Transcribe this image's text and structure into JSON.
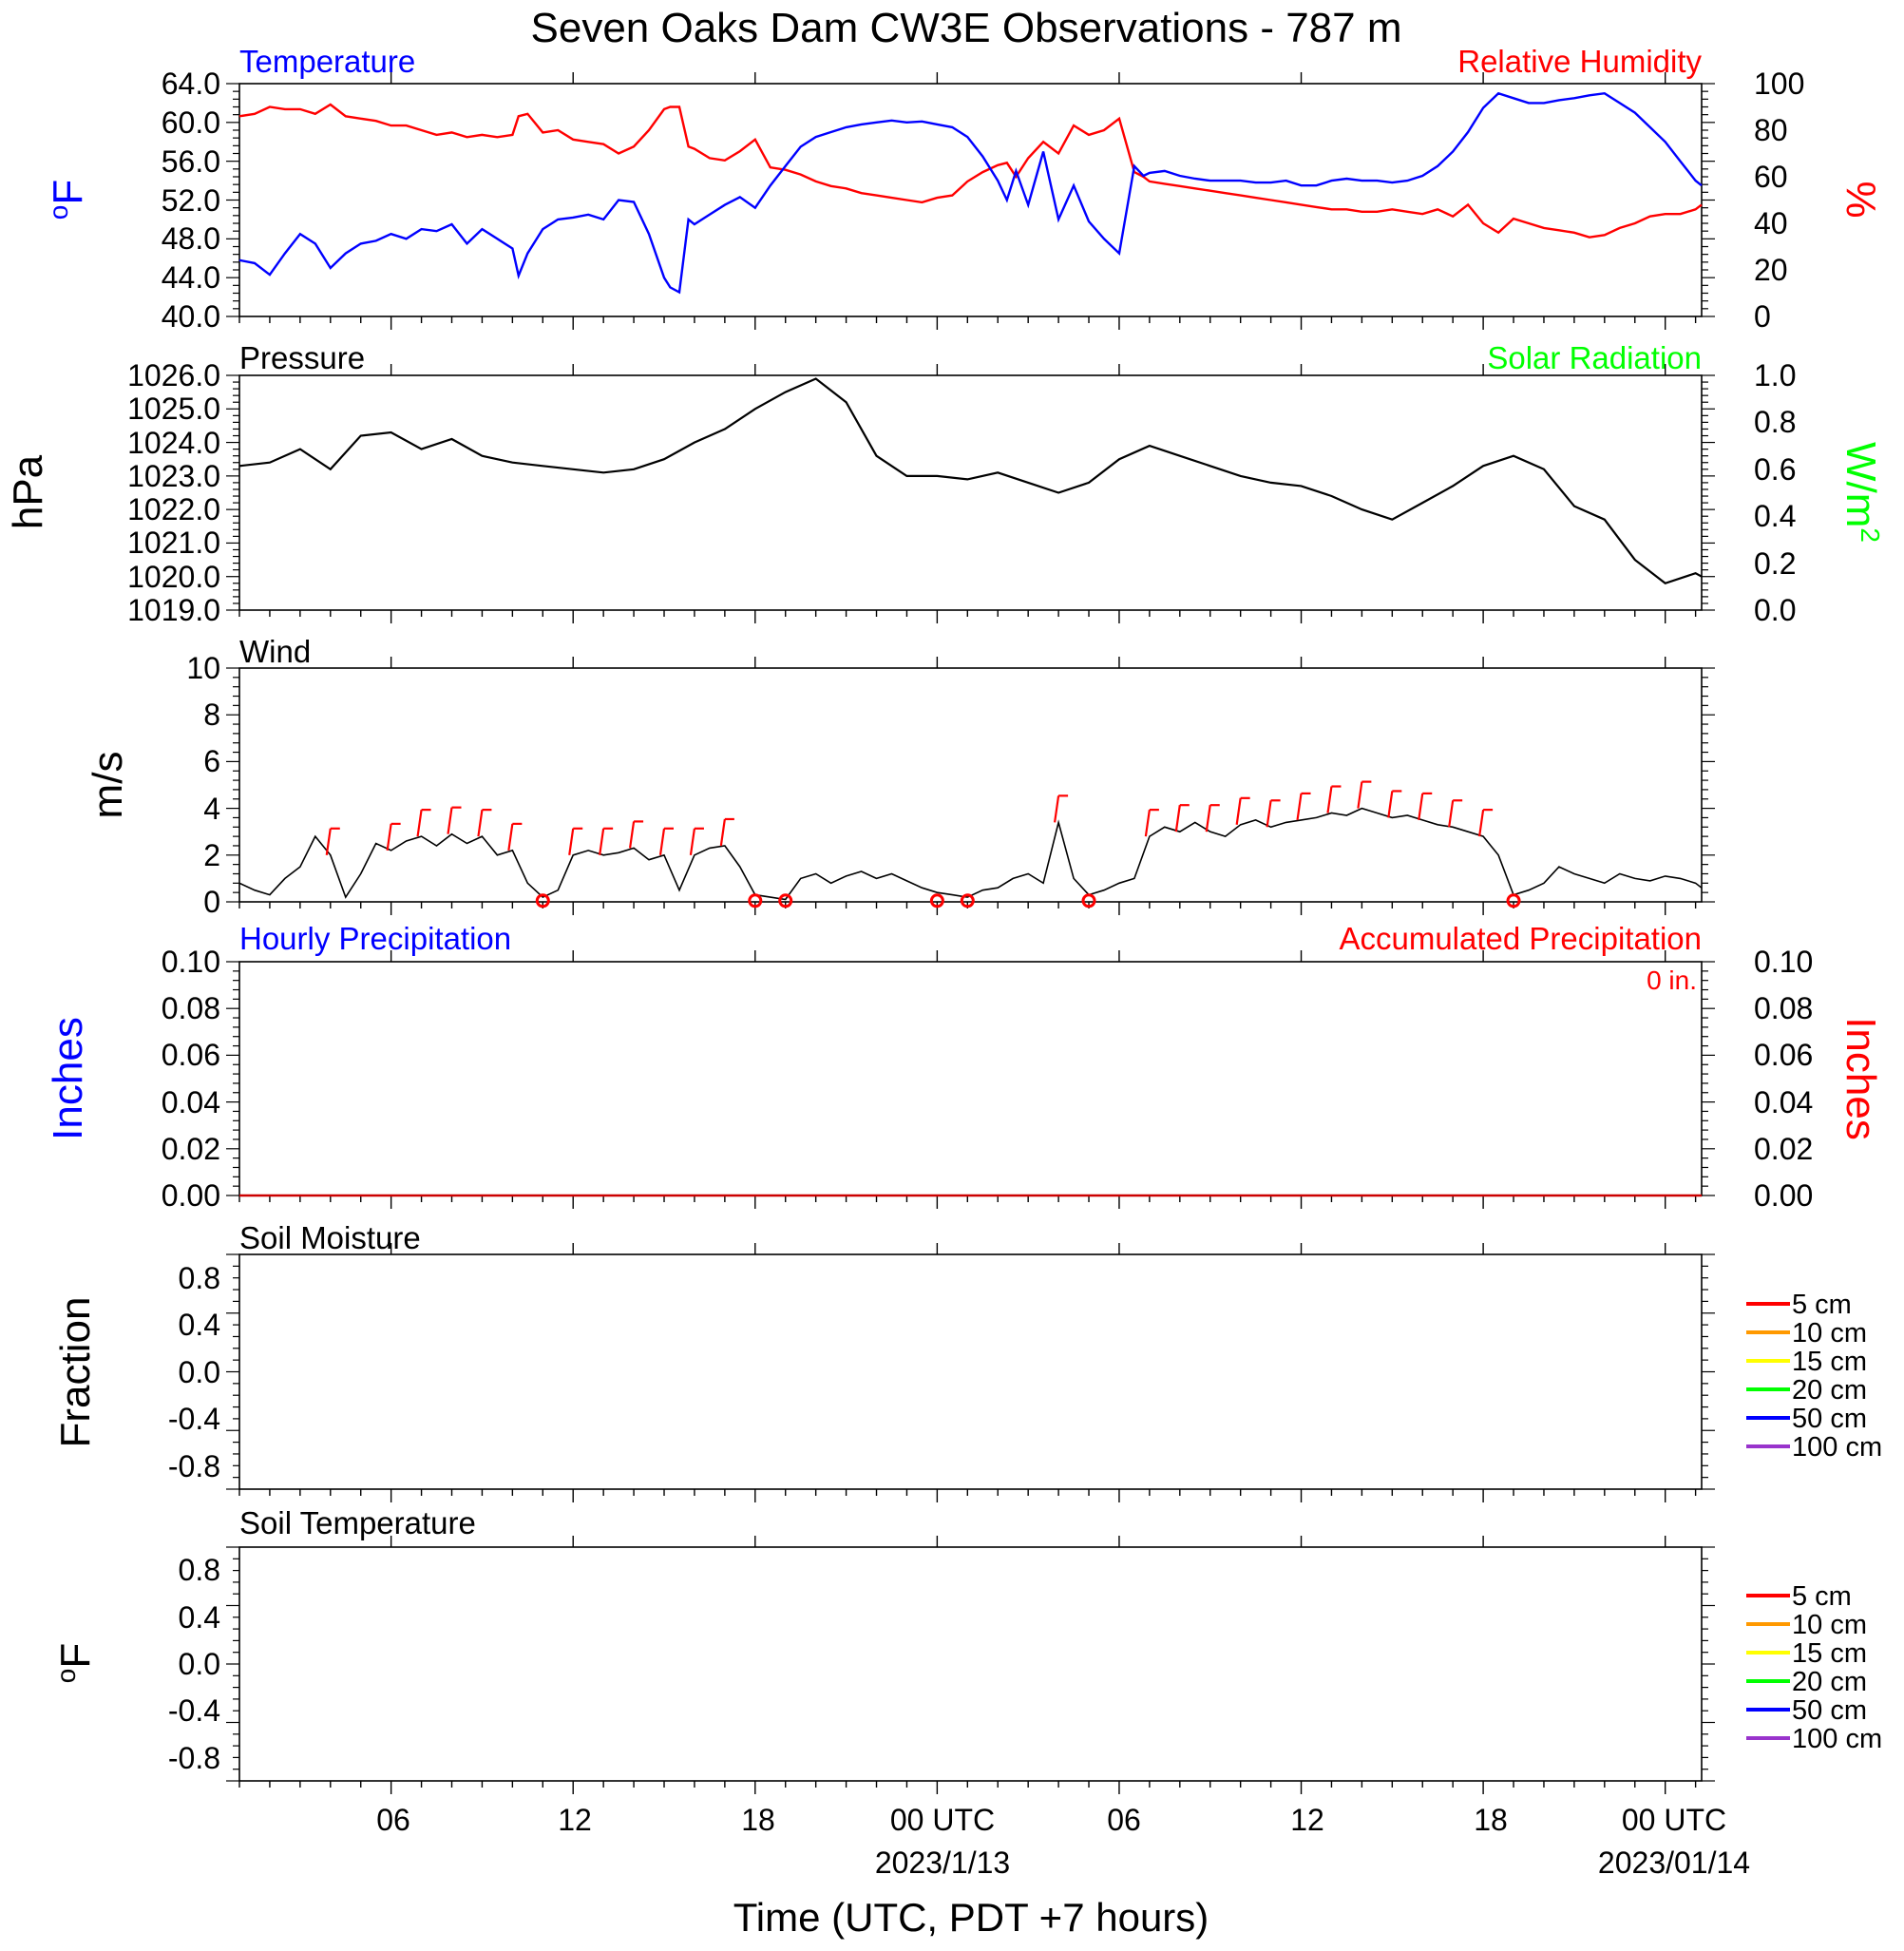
{
  "title": "Seven Oaks Dam CW3E Observations - 787 m",
  "x_axis": {
    "label": "Time (UTC, PDT +7 hours)",
    "tick_labels": [
      "06",
      "12",
      "18",
      "00 UTC",
      "06",
      "12",
      "18",
      "00 UTC"
    ],
    "date_labels": [
      "2023/1/13",
      "2023/01/14"
    ]
  },
  "colors": {
    "temperature": "#0000ff",
    "humidity": "#ff0000",
    "pressure": "#000000",
    "solar": "#00ff00",
    "wind": "#000000",
    "barb": "#ff0000",
    "hourly_precip": "#0000ff",
    "accum_precip": "#ff0000",
    "soil": [
      "#ff0000",
      "#ff9900",
      "#ffff00",
      "#00ff00",
      "#0000ff",
      "#9933cc"
    ]
  },
  "panels": {
    "temp_rh": {
      "left_title": "Temperature",
      "right_title": "Relative Humidity",
      "left_unit": "oF",
      "right_unit": "%",
      "left_ticks": [
        "64.0",
        "60.0",
        "56.0",
        "52.0",
        "48.0",
        "44.0",
        "40.0"
      ],
      "right_ticks": [
        "100",
        "80",
        "60",
        "40",
        "20",
        "0"
      ]
    },
    "pressure": {
      "left_title": "Pressure",
      "right_title": "Solar Radiation",
      "left_unit": "hPa",
      "right_unit": "W/m2",
      "left_ticks": [
        "1026.0",
        "1025.0",
        "1024.0",
        "1023.0",
        "1022.0",
        "1021.0",
        "1020.0",
        "1019.0"
      ],
      "right_ticks": [
        "1.0",
        "0.8",
        "0.6",
        "0.4",
        "0.2",
        "0.0"
      ]
    },
    "wind": {
      "left_title": "Wind",
      "left_unit": "m/s",
      "left_ticks": [
        "10",
        "8",
        "6",
        "4",
        "2",
        "0"
      ]
    },
    "precip": {
      "left_title": "Hourly Precipitation",
      "right_title": "Accumulated Precipitation",
      "accum_label": "0 in.",
      "left_unit": "Inches",
      "right_unit": "Inches",
      "left_ticks": [
        "0.10",
        "0.08",
        "0.06",
        "0.04",
        "0.02",
        "0.00"
      ],
      "right_ticks": [
        "0.10",
        "0.08",
        "0.06",
        "0.04",
        "0.02",
        "0.00"
      ]
    },
    "soil_moisture": {
      "left_title": "Soil Moisture",
      "left_unit": "Fraction",
      "left_ticks": [
        "0.8",
        "0.4",
        "0.0",
        "-0.4",
        "-0.8"
      ],
      "legend": [
        "5 cm",
        "10 cm",
        "15 cm",
        "20 cm",
        "50 cm",
        "100 cm"
      ]
    },
    "soil_temp": {
      "left_title": "Soil Temperature",
      "left_unit": "oF",
      "left_ticks": [
        "0.8",
        "0.4",
        "0.0",
        "-0.4",
        "-0.8"
      ],
      "legend": [
        "5 cm",
        "10 cm",
        "15 cm",
        "20 cm",
        "50 cm",
        "100 cm"
      ]
    }
  },
  "chart_data": [
    {
      "type": "line",
      "panel": "Temperature / Relative Humidity",
      "x_units": "hours since 2023-01-12 01 UTC",
      "series": [
        {
          "name": "Temperature",
          "axis": "left",
          "units": "oF",
          "x": [
            0,
            0.5,
            1,
            1.5,
            2,
            2.5,
            3,
            3.5,
            4,
            4.5,
            5,
            5.5,
            6,
            6.5,
            7,
            7.5,
            8,
            8.5,
            9,
            9.2,
            9.5,
            10,
            10.5,
            11,
            11.5,
            12,
            12.5,
            13,
            13.5,
            14,
            14.2,
            14.5,
            14.8,
            15,
            15.5,
            16,
            16.5,
            17,
            17.5,
            18,
            18.5,
            19,
            19.5,
            20,
            20.5,
            21,
            21.5,
            22,
            22.5,
            23,
            23.5,
            24,
            24.5,
            25,
            25.3,
            25.6,
            26,
            26.5,
            27,
            27.5,
            28,
            28.5,
            29,
            29.5,
            29.8,
            30,
            30.5,
            31,
            31.5,
            32,
            32.5,
            33,
            33.5,
            34,
            34.5,
            35,
            35.5,
            36,
            36.5,
            37,
            37.5,
            38,
            38.5,
            39,
            39.5,
            40,
            40.5,
            41,
            41.5,
            42,
            42.5,
            43,
            43.5,
            44,
            44.5,
            45,
            45.5,
            46,
            46.5,
            47,
            47.5,
            48,
            48.2
          ],
          "values": [
            45.8,
            45.5,
            44.3,
            46.5,
            48.5,
            47.5,
            45.0,
            46.5,
            47.5,
            47.8,
            48.5,
            48.0,
            49.0,
            48.8,
            49.5,
            47.5,
            49.0,
            48.0,
            47.0,
            44.2,
            46.5,
            49.0,
            50.0,
            50.2,
            50.5,
            50.0,
            52.0,
            51.8,
            48.5,
            44.0,
            43.0,
            42.5,
            50.0,
            49.5,
            50.5,
            51.5,
            52.3,
            51.2,
            53.5,
            55.5,
            57.5,
            58.5,
            59.0,
            59.5,
            59.8,
            60.0,
            60.2,
            60.0,
            60.1,
            59.8,
            59.5,
            58.5,
            56.5,
            54.0,
            52.0,
            55.0,
            51.5,
            57.0,
            50.0,
            53.5,
            49.8,
            48.0,
            46.5,
            55.5,
            54.5,
            54.8,
            55.0,
            54.5,
            54.2,
            54.0,
            54.0,
            54.0,
            53.8,
            53.8,
            54.0,
            53.5,
            53.5,
            54.0,
            54.2,
            54.0,
            54.0,
            53.8,
            54.0,
            54.5,
            55.5,
            57.0,
            59.0,
            61.5,
            63.0,
            62.5,
            62.0,
            62.0,
            62.3,
            62.5,
            62.8,
            63.0,
            62.0,
            61.0,
            59.5,
            58.0,
            56.0,
            54.0,
            53.5
          ]
        },
        {
          "name": "Relative Humidity",
          "axis": "right",
          "units": "%",
          "x": [
            0,
            0.5,
            1,
            1.5,
            2,
            2.5,
            3,
            3.5,
            4,
            4.5,
            5,
            5.5,
            6,
            6.5,
            7,
            7.5,
            8,
            8.5,
            9,
            9.2,
            9.5,
            10,
            10.5,
            11,
            11.5,
            12,
            12.5,
            13,
            13.5,
            14,
            14.2,
            14.5,
            14.8,
            15,
            15.5,
            16,
            16.5,
            17,
            17.5,
            18,
            18.5,
            19,
            19.5,
            20,
            20.5,
            21,
            21.5,
            22,
            22.5,
            23,
            23.5,
            24,
            24.5,
            25,
            25.3,
            25.6,
            26,
            26.5,
            27,
            27.5,
            28,
            28.5,
            29,
            29.5,
            29.8,
            30,
            30.5,
            31,
            31.5,
            32,
            32.5,
            33,
            33.5,
            34,
            34.5,
            35,
            35.5,
            36,
            36.5,
            37,
            37.5,
            38,
            38.5,
            39,
            39.5,
            40,
            40.5,
            41,
            41.5,
            42,
            42.5,
            43,
            43.5,
            44,
            44.5,
            45,
            45.5,
            46,
            46.5,
            47,
            47.5,
            48,
            48.2
          ],
          "values": [
            86,
            87,
            90,
            89,
            89,
            87,
            91,
            86,
            85,
            84,
            82,
            82,
            80,
            78,
            79,
            77,
            78,
            77,
            78,
            86,
            87,
            79,
            80,
            76,
            75,
            74,
            70,
            73,
            80,
            89,
            90,
            90,
            73,
            72,
            68,
            67,
            71,
            76,
            64,
            63,
            61,
            58,
            56,
            55,
            53,
            52,
            51,
            50,
            49,
            51,
            52,
            58,
            62,
            65,
            66,
            60,
            68,
            75,
            70,
            82,
            78,
            80,
            85,
            62,
            60,
            58,
            57,
            56,
            55,
            54,
            53,
            52,
            51,
            50,
            49,
            48,
            47,
            46,
            46,
            45,
            45,
            46,
            45,
            44,
            46,
            43,
            48,
            40,
            36,
            42,
            40,
            38,
            37,
            36,
            34,
            35,
            38,
            40,
            43,
            44,
            44,
            46,
            48
          ]
        }
      ],
      "ylim_left": [
        40,
        64
      ],
      "ylim_right": [
        0,
        100
      ]
    },
    {
      "type": "line",
      "panel": "Pressure / Solar Radiation",
      "x_units": "hours since 2023-01-12 01 UTC",
      "series": [
        {
          "name": "Pressure",
          "axis": "left",
          "units": "hPa",
          "x": [
            0,
            1,
            2,
            3,
            4,
            5,
            6,
            7,
            8,
            9,
            10,
            11,
            12,
            13,
            14,
            15,
            16,
            17,
            18,
            19,
            20,
            21,
            22,
            23,
            24,
            25,
            26,
            27,
            28,
            29,
            30,
            31,
            32,
            33,
            34,
            35,
            36,
            37,
            38,
            39,
            40,
            41,
            42,
            43,
            44,
            45,
            46,
            47,
            48,
            48.2
          ],
          "values": [
            1023.3,
            1023.4,
            1023.8,
            1023.2,
            1024.2,
            1024.3,
            1023.8,
            1024.1,
            1023.6,
            1023.4,
            1023.3,
            1023.2,
            1023.1,
            1023.2,
            1023.5,
            1024.0,
            1024.4,
            1025.0,
            1025.5,
            1025.9,
            1025.2,
            1023.6,
            1023.0,
            1023.0,
            1022.9,
            1023.1,
            1022.8,
            1022.5,
            1022.8,
            1023.5,
            1023.9,
            1023.6,
            1023.3,
            1023.0,
            1022.8,
            1022.7,
            1022.4,
            1022.0,
            1021.7,
            1022.2,
            1022.7,
            1023.3,
            1023.6,
            1023.2,
            1022.1,
            1021.7,
            1020.5,
            1019.8,
            1020.1,
            1020.0
          ]
        }
      ],
      "ylim_left": [
        1019,
        1026
      ],
      "ylim_right": [
        0,
        1
      ]
    },
    {
      "type": "line",
      "panel": "Wind",
      "x_units": "hours since 2023-01-12 01 UTC",
      "series": [
        {
          "name": "Wind speed",
          "units": "m/s",
          "x": [
            0,
            0.5,
            1,
            1.5,
            2,
            2.5,
            3,
            3.5,
            4,
            4.5,
            5,
            5.5,
            6,
            6.5,
            7,
            7.5,
            8,
            8.5,
            9,
            9.5,
            10,
            10.5,
            11,
            11.5,
            12,
            12.5,
            13,
            13.5,
            14,
            14.5,
            15,
            15.5,
            16,
            16.5,
            17,
            17.5,
            18,
            18.5,
            19,
            19.5,
            20,
            20.5,
            21,
            21.5,
            22,
            22.5,
            23,
            23.5,
            24,
            24.5,
            25,
            25.5,
            26,
            26.5,
            27,
            27.5,
            28,
            28.5,
            29,
            29.5,
            30,
            30.5,
            31,
            31.5,
            32,
            32.5,
            33,
            33.5,
            34,
            34.5,
            35,
            35.5,
            36,
            36.5,
            37,
            37.5,
            38,
            38.5,
            39,
            39.5,
            40,
            40.5,
            41,
            41.5,
            42,
            42.5,
            43,
            43.5,
            44,
            44.5,
            45,
            45.5,
            46,
            46.5,
            47,
            47.5,
            48,
            48.2
          ],
          "values": [
            0.8,
            0.5,
            0.3,
            1.0,
            1.5,
            2.8,
            2.0,
            0.2,
            1.2,
            2.5,
            2.2,
            2.6,
            2.8,
            2.4,
            2.9,
            2.5,
            2.8,
            2.0,
            2.2,
            0.8,
            0.2,
            0.5,
            2.0,
            2.2,
            2.0,
            2.1,
            2.3,
            1.8,
            2.0,
            0.5,
            2.0,
            2.3,
            2.4,
            1.5,
            0.3,
            0.2,
            0.1,
            1.0,
            1.2,
            0.8,
            1.1,
            1.3,
            1.0,
            1.2,
            0.9,
            0.6,
            0.4,
            0.3,
            0.2,
            0.5,
            0.6,
            1.0,
            1.2,
            0.8,
            3.4,
            1.0,
            0.3,
            0.5,
            0.8,
            1.0,
            2.8,
            3.2,
            3.0,
            3.4,
            3.0,
            2.8,
            3.3,
            3.5,
            3.2,
            3.4,
            3.5,
            3.6,
            3.8,
            3.7,
            4.0,
            3.8,
            3.6,
            3.7,
            3.5,
            3.3,
            3.2,
            3.0,
            2.8,
            2.0,
            0.3,
            0.5,
            0.8,
            1.5,
            1.2,
            1.0,
            0.8,
            1.2,
            1.0,
            0.9,
            1.1,
            1.0,
            0.8,
            0.6
          ]
        }
      ],
      "ylim": [
        0,
        10
      ]
    },
    {
      "type": "line",
      "panel": "Hourly / Accumulated Precipitation",
      "series": [
        {
          "name": "Hourly Precipitation",
          "axis": "left",
          "units": "Inches",
          "x": [
            0,
            48.2
          ],
          "values": [
            0,
            0
          ]
        },
        {
          "name": "Accumulated Precipitation",
          "axis": "right",
          "units": "Inches",
          "x": [
            0,
            48.2
          ],
          "values": [
            0,
            0
          ]
        }
      ],
      "ylim_left": [
        0,
        0.1
      ],
      "ylim_right": [
        0,
        0.1
      ]
    },
    {
      "type": "line",
      "panel": "Soil Moisture",
      "series": [
        {
          "name": "5 cm",
          "values": []
        },
        {
          "name": "10 cm",
          "values": []
        },
        {
          "name": "15 cm",
          "values": []
        },
        {
          "name": "20 cm",
          "values": []
        },
        {
          "name": "50 cm",
          "values": []
        },
        {
          "name": "100 cm",
          "values": []
        }
      ],
      "ylim": [
        -1,
        1
      ]
    },
    {
      "type": "line",
      "panel": "Soil Temperature",
      "series": [
        {
          "name": "5 cm",
          "values": []
        },
        {
          "name": "10 cm",
          "values": []
        },
        {
          "name": "15 cm",
          "values": []
        },
        {
          "name": "20 cm",
          "values": []
        },
        {
          "name": "50 cm",
          "values": []
        },
        {
          "name": "100 cm",
          "values": []
        }
      ],
      "ylim": [
        -1,
        1
      ]
    }
  ]
}
